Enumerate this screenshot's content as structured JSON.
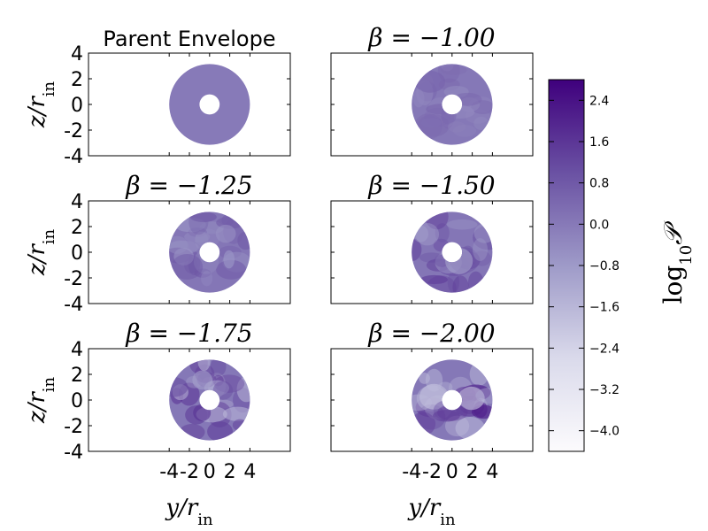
{
  "chart_data": {
    "type": "heatmap",
    "colormap": "Purples",
    "xlabel": "y/r_in",
    "ylabel": "z/r_in",
    "xlabel_main": "y/r",
    "xlabel_sub": "in",
    "ylabel_main": "z/r",
    "ylabel_sub": "in",
    "x_ticks": [
      "-4",
      "-2",
      "0",
      "2",
      "4"
    ],
    "x_tick_values": [
      -4,
      -2,
      0,
      2,
      4
    ],
    "y_ticks": [
      "-4",
      "-2",
      "0",
      "2",
      "4"
    ],
    "y_tick_values": [
      -4,
      -2,
      0,
      2,
      4
    ],
    "xlim": [
      -12,
      8
    ],
    "ylim": [
      4,
      -4
    ],
    "ring_inner_radius": 1,
    "ring_outer_radius": 4,
    "panels": [
      {
        "title": "Parent Envelope",
        "title_style": "text",
        "base_level": 0.0,
        "variance": 0.0
      },
      {
        "title": "β = −1.00",
        "title_style": "math",
        "beta": -1.0,
        "base_level": 0.05,
        "variance": 0.35
      },
      {
        "title": "β = −1.25",
        "title_style": "math",
        "beta": -1.25,
        "base_level": 0.1,
        "variance": 0.65
      },
      {
        "title": "β = −1.50",
        "title_style": "math",
        "beta": -1.5,
        "base_level": 0.1,
        "variance": 1.0
      },
      {
        "title": "β = −1.75",
        "title_style": "math",
        "beta": -1.75,
        "base_level": 0.05,
        "variance": 1.35
      },
      {
        "title": "β = −2.00",
        "title_style": "math",
        "beta": -2.0,
        "base_level": 0.05,
        "variance": 1.6
      }
    ],
    "colorbar": {
      "label": "log10 P",
      "label_main": "log",
      "label_sub": "10",
      "label_sym": "𝒫",
      "range": [
        -4.4,
        2.8
      ],
      "ticks": [
        "2.4",
        "1.6",
        "0.8",
        "0.0",
        "−0.8",
        "−1.6",
        "−2.4",
        "−3.2",
        "−4.0"
      ],
      "tick_values": [
        2.4,
        1.6,
        0.8,
        0.0,
        -0.8,
        -1.6,
        -2.4,
        -3.2,
        -4.0
      ],
      "color_low": "#fcfbfd",
      "color_mid_low": "#dadaeb",
      "color_mid": "#9e9ac8",
      "color_mid_high": "#6a51a3",
      "color_high": "#3f007d"
    }
  }
}
